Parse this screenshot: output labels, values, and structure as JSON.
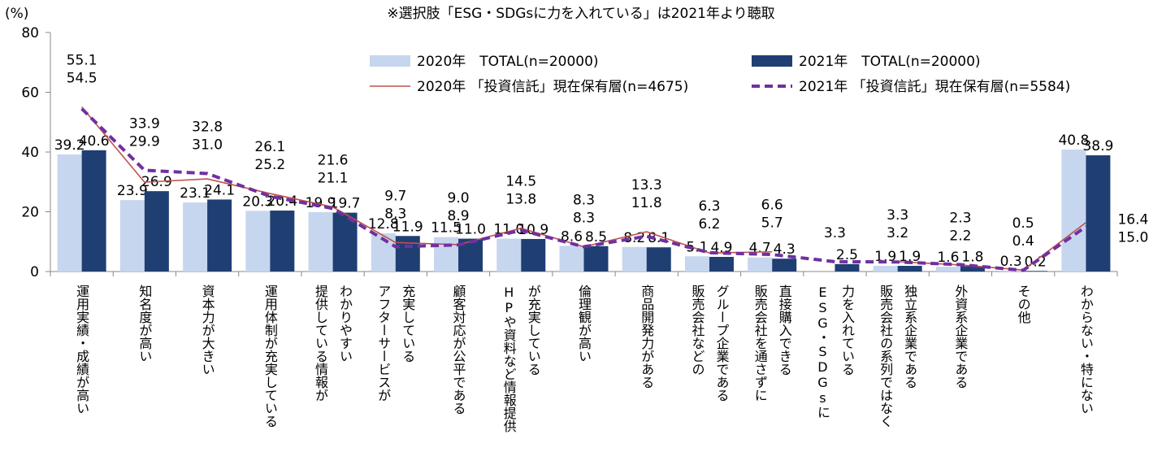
{
  "chart_data": {
    "type": "bar_line",
    "title": "※選択肢「ESG・SDGsに力を入れている」は2021年より聴取",
    "y_label": "(%)",
    "categories": [
      "運用実績・成績が高い",
      "知名度が高い",
      "資本力が大きい",
      "運用体制が充実している",
      "提供している情報が\nわかりやすい",
      "アフターサービスが\n充実している",
      "顧客対応が公平である",
      "HPや資料など情報提供\nが充実している",
      "倫理観が高い",
      "商品開発力がある",
      "販売会社などの\nグループ企業である",
      "販売会社を通さずに\n直接購入できる",
      "ESG・SDGsに\n力を入れている",
      "販売会社の系列ではなく\n独立系企業である",
      "外資系企業である",
      "その他",
      "わからない・特にない"
    ],
    "series": [
      {
        "name": "2020年　TOTAL(n=20000)",
        "kind": "bar",
        "color": "#c6d6ee",
        "values": [
          39.2,
          23.9,
          23.1,
          20.3,
          19.9,
          12.8,
          11.5,
          11.0,
          8.6,
          8.2,
          5.1,
          4.7,
          null,
          1.9,
          1.6,
          0.3,
          40.8
        ],
        "value_labels": [
          "39.2",
          "23.9",
          "23.1",
          "20.3",
          "19.9",
          "12.8",
          "11.5",
          "11.0",
          "8.6",
          "8.2",
          "5.1",
          "4.7",
          null,
          "1.9",
          "1.6",
          "0.3",
          "40.8"
        ]
      },
      {
        "name": "2021年　TOTAL(n=20000)",
        "kind": "bar",
        "color": "#1f3f73",
        "values": [
          40.6,
          26.9,
          24.1,
          20.4,
          19.7,
          11.9,
          11.0,
          10.9,
          8.5,
          8.1,
          4.9,
          4.3,
          2.5,
          1.9,
          1.8,
          0.2,
          38.9
        ],
        "value_labels": [
          "40.6",
          "26.9",
          "24.1",
          "20.4",
          "19.7",
          "11.9",
          "11.0",
          "10.9",
          "8.5",
          "8.1",
          "4.9",
          "4.3",
          "2.5",
          "1.9",
          "1.8",
          "0.2",
          "38.9"
        ]
      },
      {
        "name": "2020年 「投資信託」現在保有層(n=4675)",
        "kind": "line",
        "color": "#c0504d",
        "label_color": "#e0a09c",
        "values": [
          55.1,
          29.9,
          31.0,
          26.1,
          21.6,
          9.7,
          9.0,
          14.5,
          8.3,
          13.3,
          6.2,
          6.6,
          null,
          3.3,
          2.2,
          0.5,
          16.4
        ],
        "value_labels": [
          "55.1",
          "29.9",
          "31.0",
          "26.1",
          "21.6",
          "9.7",
          "9.0",
          "14.5",
          "8.3",
          "13.3",
          "6.2",
          "6.6",
          null,
          "3.3",
          "2.2",
          "0.5",
          "16.4"
        ]
      },
      {
        "name": "2021年 「投資信託」現在保有層(n=5584)",
        "kind": "line",
        "dashed": true,
        "color": "#7030a0",
        "label_color": "#7030a0",
        "values": [
          54.5,
          33.9,
          32.8,
          25.2,
          21.1,
          8.3,
          8.9,
          13.8,
          8.3,
          11.8,
          6.3,
          5.7,
          3.3,
          3.2,
          2.3,
          0.4,
          15.0
        ],
        "value_labels": [
          "54.5",
          "33.9",
          "32.8",
          "25.2",
          "21.1",
          "8.3",
          "8.9",
          "13.8",
          "8.3",
          "11.8",
          "6.3",
          "5.7",
          "3.3",
          "3.2",
          "2.3",
          "0.4",
          "15.0"
        ]
      }
    ],
    "ylim": [
      0,
      80
    ],
    "yticks": [
      0,
      20,
      40,
      60,
      80
    ]
  }
}
